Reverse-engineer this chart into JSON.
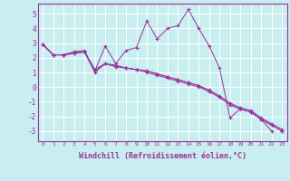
{
  "background_color": "#c8eef0",
  "grid_color": "#ffffff",
  "line_color": "#993399",
  "xlabel": "Windchill (Refroidissement éolien,°C)",
  "xlabel_fontsize": 6.0,
  "yticks": [
    -3,
    -2,
    -1,
    0,
    1,
    2,
    3,
    4,
    5
  ],
  "xticks": [
    0,
    1,
    2,
    3,
    4,
    5,
    6,
    7,
    8,
    9,
    10,
    11,
    12,
    13,
    14,
    15,
    16,
    17,
    18,
    19,
    20,
    21,
    22,
    23
  ],
  "xlim": [
    -0.5,
    23.5
  ],
  "ylim": [
    -3.7,
    5.7
  ],
  "series": [
    [
      2.9,
      2.2,
      2.2,
      2.4,
      2.5,
      1.1,
      2.8,
      1.6,
      2.5,
      2.7,
      4.5,
      3.3,
      4.0,
      4.2,
      5.3,
      4.0,
      2.8,
      1.3,
      -2.1,
      -1.5,
      -1.7,
      -2.2,
      -3.0,
      null
    ],
    [
      2.9,
      2.2,
      2.2,
      2.4,
      2.4,
      1.0,
      1.6,
      1.4,
      1.3,
      1.2,
      1.1,
      0.9,
      0.7,
      0.5,
      0.3,
      0.1,
      -0.3,
      -0.7,
      -1.2,
      -1.5,
      -1.7,
      -2.2,
      -2.6,
      -3.0
    ],
    [
      2.9,
      2.2,
      2.2,
      2.3,
      2.4,
      1.2,
      1.6,
      1.5,
      1.3,
      1.2,
      1.1,
      0.9,
      0.7,
      0.5,
      0.3,
      0.1,
      -0.2,
      -0.6,
      -1.1,
      -1.4,
      -1.6,
      -2.1,
      -2.5,
      -2.9
    ],
    [
      2.9,
      2.2,
      2.2,
      2.3,
      2.4,
      1.1,
      1.6,
      1.4,
      1.3,
      1.2,
      1.0,
      0.8,
      0.6,
      0.4,
      0.2,
      0.0,
      -0.3,
      -0.7,
      -1.2,
      -1.5,
      -1.7,
      -2.2,
      -2.6,
      -3.0
    ]
  ]
}
